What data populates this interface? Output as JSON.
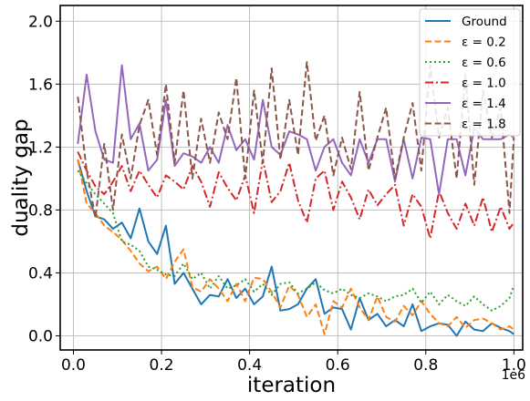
{
  "chart_data": {
    "type": "line",
    "title": "",
    "xlabel": "iteration",
    "ylabel": "duality gap",
    "x_offset_label": "1e6",
    "xlim": [
      -0.03,
      1.02
    ],
    "ylim": [
      -0.09,
      2.1
    ],
    "xticks": [
      0.0,
      0.2,
      0.4,
      0.6,
      0.8,
      1.0
    ],
    "xtick_labels": [
      "0.0",
      "0.2",
      "0.4",
      "0.6",
      "0.8",
      "1.0"
    ],
    "yticks": [
      0.0,
      0.4,
      0.8,
      1.2,
      1.6,
      2.0
    ],
    "ytick_labels": [
      "0.0",
      "0.4",
      "0.8",
      "1.2",
      "1.6",
      "2.0"
    ],
    "grid": true,
    "legend_position": "top-right",
    "x": [
      0.01,
      0.03,
      0.05,
      0.07,
      0.09,
      0.11,
      0.13,
      0.15,
      0.17,
      0.19,
      0.21,
      0.23,
      0.25,
      0.27,
      0.29,
      0.31,
      0.33,
      0.35,
      0.37,
      0.39,
      0.41,
      0.43,
      0.45,
      0.47,
      0.49,
      0.51,
      0.53,
      0.55,
      0.57,
      0.59,
      0.61,
      0.63,
      0.65,
      0.67,
      0.69,
      0.71,
      0.73,
      0.75,
      0.77,
      0.79,
      0.81,
      0.83,
      0.85,
      0.87,
      0.89,
      0.91,
      0.93,
      0.95,
      0.97,
      0.99,
      1.0
    ],
    "series": [
      {
        "name": "Ground",
        "color": "#1f77b4",
        "dash": "solid",
        "values": [
          1.12,
          0.92,
          0.76,
          0.74,
          0.68,
          0.72,
          0.62,
          0.81,
          0.6,
          0.52,
          0.7,
          0.33,
          0.4,
          0.3,
          0.2,
          0.26,
          0.25,
          0.36,
          0.24,
          0.3,
          0.2,
          0.25,
          0.44,
          0.16,
          0.17,
          0.2,
          0.3,
          0.36,
          0.14,
          0.18,
          0.17,
          0.04,
          0.24,
          0.1,
          0.14,
          0.06,
          0.1,
          0.06,
          0.2,
          0.03,
          0.06,
          0.08,
          0.07,
          0.0,
          0.09,
          0.04,
          0.03,
          0.08,
          0.05,
          0.03,
          0.01
        ]
      },
      {
        "name": "ε = 0.2",
        "color": "#ff7f0e",
        "dash": "dashed",
        "values": [
          1.12,
          0.84,
          0.78,
          0.7,
          0.66,
          0.61,
          0.54,
          0.46,
          0.41,
          0.44,
          0.36,
          0.47,
          0.55,
          0.31,
          0.28,
          0.36,
          0.3,
          0.22,
          0.33,
          0.22,
          0.37,
          0.36,
          0.28,
          0.18,
          0.32,
          0.26,
          0.12,
          0.2,
          0.01,
          0.22,
          0.18,
          0.3,
          0.18,
          0.1,
          0.25,
          0.12,
          0.09,
          0.19,
          0.13,
          0.22,
          0.14,
          0.08,
          0.06,
          0.12,
          0.05,
          0.1,
          0.11,
          0.08,
          0.04,
          0.06,
          0.04
        ]
      },
      {
        "name": "ε = 0.6",
        "color": "#2ca02c",
        "dash": "dotted",
        "values": [
          1.05,
          0.97,
          0.9,
          0.84,
          0.78,
          0.6,
          0.58,
          0.54,
          0.44,
          0.42,
          0.39,
          0.38,
          0.46,
          0.36,
          0.4,
          0.3,
          0.38,
          0.3,
          0.32,
          0.36,
          0.28,
          0.33,
          0.26,
          0.33,
          0.34,
          0.27,
          0.3,
          0.34,
          0.29,
          0.27,
          0.3,
          0.26,
          0.24,
          0.27,
          0.25,
          0.22,
          0.25,
          0.26,
          0.3,
          0.21,
          0.28,
          0.2,
          0.26,
          0.22,
          0.19,
          0.25,
          0.2,
          0.16,
          0.19,
          0.24,
          0.32
        ]
      },
      {
        "name": "ε = 1.0",
        "color": "#d62728",
        "dash": "dashdot",
        "values": [
          1.17,
          1.05,
          0.95,
          0.9,
          0.98,
          1.08,
          0.92,
          1.05,
          0.96,
          0.88,
          1.02,
          0.98,
          0.93,
          1.08,
          0.98,
          0.82,
          1.04,
          0.94,
          0.86,
          1.02,
          0.78,
          1.12,
          0.85,
          0.92,
          1.1,
          0.86,
          0.72,
          1.0,
          1.05,
          0.8,
          0.98,
          0.88,
          0.74,
          0.93,
          0.83,
          0.9,
          0.96,
          0.7,
          0.9,
          0.82,
          0.62,
          0.92,
          0.78,
          0.68,
          0.84,
          0.7,
          0.88,
          0.66,
          0.82,
          0.68,
          0.72
        ]
      },
      {
        "name": "ε = 1.4",
        "color": "#9467bd",
        "dash": "solid",
        "values": [
          1.22,
          1.66,
          1.3,
          1.12,
          1.1,
          1.72,
          1.25,
          1.35,
          1.05,
          1.12,
          1.5,
          1.08,
          1.16,
          1.14,
          1.1,
          1.2,
          1.1,
          1.34,
          1.18,
          1.25,
          1.12,
          1.5,
          1.2,
          1.15,
          1.3,
          1.28,
          1.25,
          1.05,
          1.2,
          1.25,
          1.1,
          1.02,
          1.25,
          1.1,
          1.25,
          1.25,
          0.98,
          1.25,
          1.0,
          1.26,
          1.25,
          0.9,
          1.25,
          1.25,
          1.02,
          1.32,
          1.25,
          1.25,
          1.25,
          1.28,
          1.26
        ]
      },
      {
        "name": "ε = 1.8",
        "color": "#8c564b",
        "dash": "dashed",
        "values": [
          1.52,
          1.05,
          0.75,
          1.22,
          0.8,
          1.28,
          1.0,
          1.34,
          1.5,
          1.15,
          1.6,
          1.1,
          1.56,
          1.0,
          1.38,
          1.1,
          1.42,
          1.25,
          1.64,
          1.0,
          1.56,
          1.1,
          1.7,
          1.12,
          1.5,
          1.15,
          1.74,
          1.24,
          1.4,
          1.02,
          1.26,
          1.06,
          1.55,
          1.05,
          1.26,
          1.45,
          1.0,
          1.26,
          1.48,
          1.05,
          1.72,
          1.26,
          1.45,
          1.0,
          1.66,
          0.96,
          1.56,
          1.26,
          1.45,
          0.78,
          1.26
        ]
      }
    ]
  }
}
